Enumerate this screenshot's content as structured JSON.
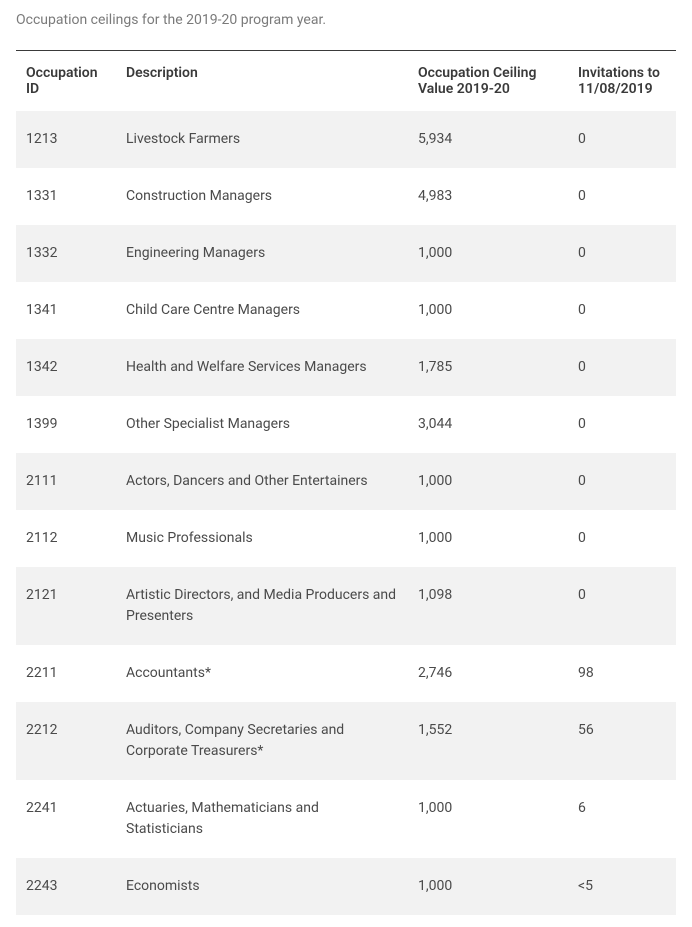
{
  "caption": "Occupation ceilings for the 2019-20 program year.",
  "table": {
    "columns": [
      {
        "key": "id",
        "label": "Occupation ID",
        "class": "col-id"
      },
      {
        "key": "desc",
        "label": "Description",
        "class": "col-desc"
      },
      {
        "key": "ceiling",
        "label": "Occupation Ceiling Value 2019-20",
        "class": "col-ceiling"
      },
      {
        "key": "inv",
        "label": "Invitations to 11/08/2019",
        "class": "col-inv"
      }
    ],
    "rows": [
      {
        "id": "1213",
        "desc": "Livestock Farmers",
        "ceiling": "5,934",
        "inv": "0"
      },
      {
        "id": "1331",
        "desc": "Construction Managers",
        "ceiling": "4,983",
        "inv": "0"
      },
      {
        "id": "1332",
        "desc": "Engineering Managers",
        "ceiling": "1,000",
        "inv": "0"
      },
      {
        "id": "1341",
        "desc": "Child Care Centre Managers",
        "ceiling": "1,000",
        "inv": "0"
      },
      {
        "id": "1342",
        "desc": "Health and Welfare Services Managers",
        "ceiling": "1,785",
        "inv": "0"
      },
      {
        "id": "1399",
        "desc": "Other Specialist Managers",
        "ceiling": "3,044",
        "inv": "0"
      },
      {
        "id": "2111",
        "desc": "Actors, Dancers and Other Entertainers",
        "ceiling": "1,000",
        "inv": "0"
      },
      {
        "id": "2112",
        "desc": "Music Professionals",
        "ceiling": "1,000",
        "inv": "0"
      },
      {
        "id": "2121",
        "desc": "Artistic Directors, and Media Producers and Presenters",
        "ceiling": "1,098",
        "inv": "0"
      },
      {
        "id": "2211",
        "desc": "Accountants*",
        "ceiling": "2,746",
        "inv": "98"
      },
      {
        "id": "2212",
        "desc": "Auditors, Company Secretaries and Corporate Treasurers*",
        "ceiling": "1,552",
        "inv": "56"
      },
      {
        "id": "2241",
        "desc": "Actuaries, Mathematicians and Statisticians",
        "ceiling": "1,000",
        "inv": "6"
      },
      {
        "id": "2243",
        "desc": "Economists",
        "ceiling": "1,000",
        "inv": "<5"
      }
    ]
  },
  "styling": {
    "body_bg": "#ffffff",
    "text_color": "#4a4a4a",
    "caption_color": "#7a7a7a",
    "header_color": "#3a3a3a",
    "row_odd_bg": "#f2f2f2",
    "row_even_bg": "#ffffff",
    "border_top_color": "#3a3a3a",
    "font_size": 14,
    "header_font_weight": 600
  }
}
